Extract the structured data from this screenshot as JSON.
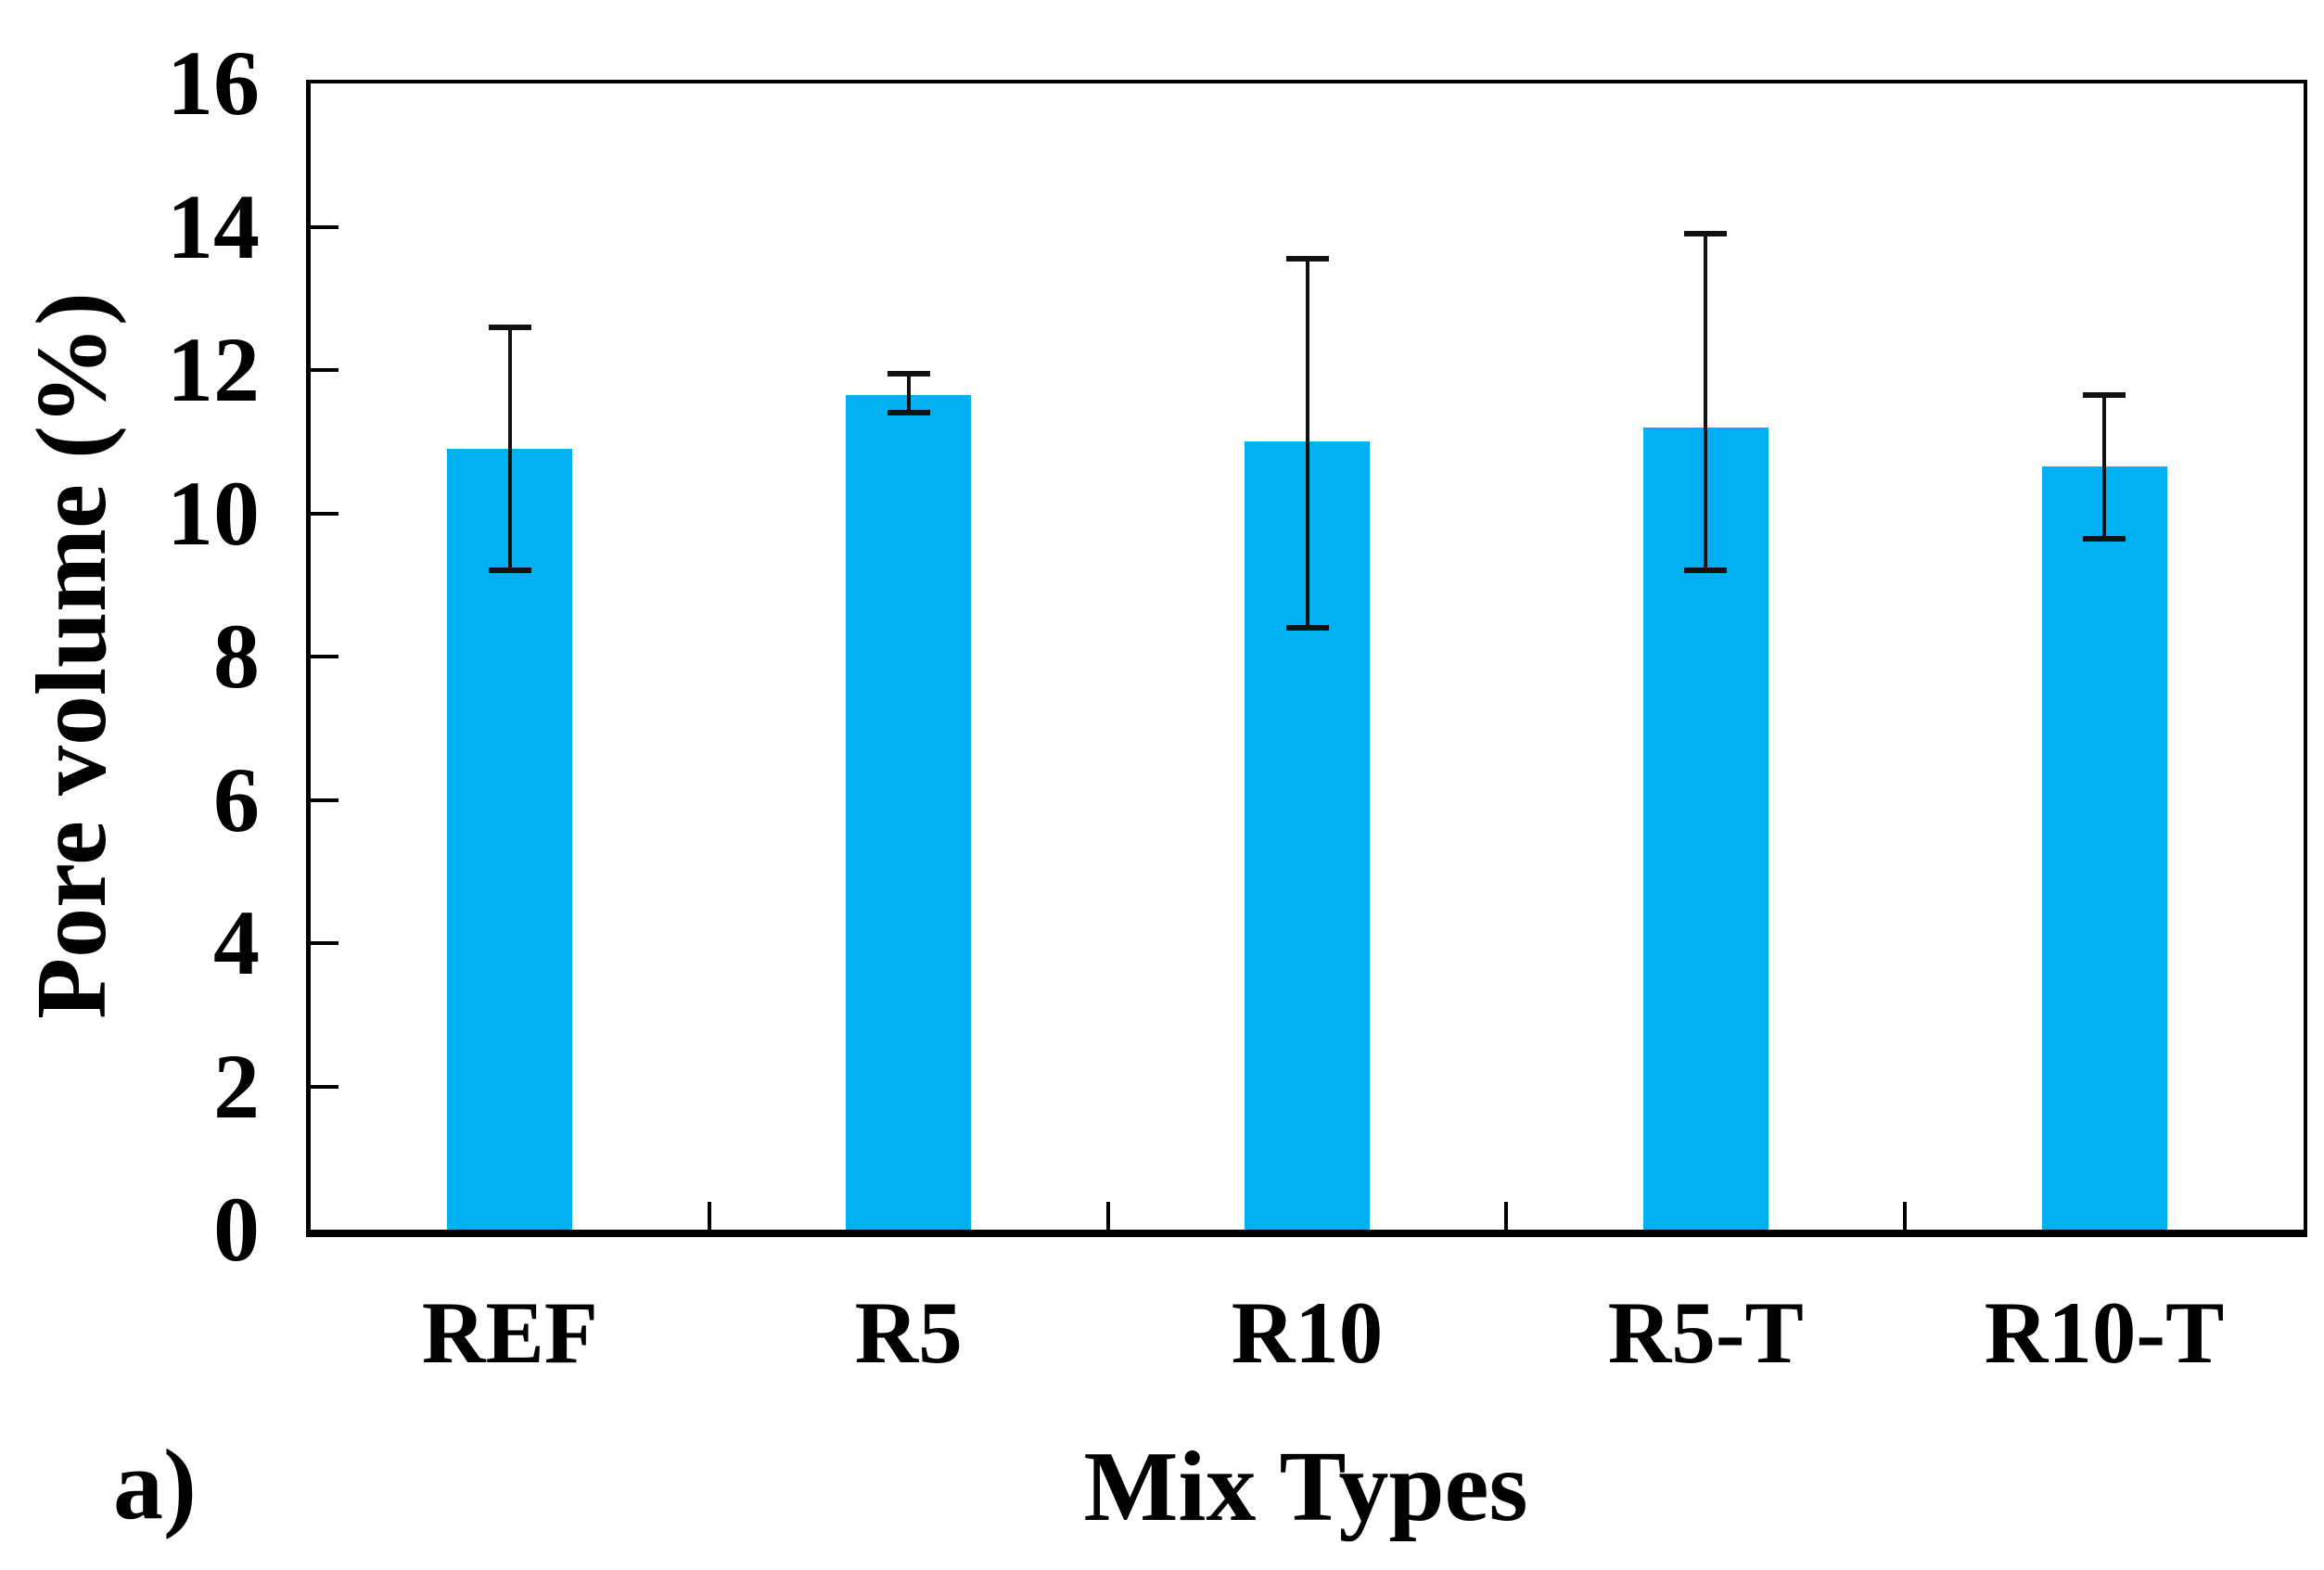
{
  "figure": {
    "panel_label": "a)",
    "background_color": "#ffffff",
    "text_color": "#000000"
  },
  "chart_data": {
    "type": "bar",
    "title": "",
    "xlabel": "Mix Types",
    "ylabel": "Pore volume (%)",
    "categories": [
      "REF",
      "R5",
      "R10",
      "R5-T",
      "R10-T"
    ],
    "values": [
      10.9,
      11.65,
      11.0,
      11.2,
      10.65
    ],
    "error_bars": {
      "upper": [
        12.6,
        11.95,
        13.55,
        13.9,
        11.65
      ],
      "lower": [
        9.2,
        11.4,
        8.4,
        9.2,
        9.65
      ]
    },
    "ylim": [
      0,
      16
    ],
    "ytick_interval": 2,
    "ytick_values": [
      0,
      2,
      4,
      6,
      8,
      10,
      12,
      14,
      16
    ],
    "ytick_labels": [
      "0",
      "2",
      "4",
      "6",
      "8",
      "10",
      "12",
      "14",
      "16"
    ],
    "bar_color": "#00B0F0",
    "axis_color": "#000000",
    "error_bar_color": "#111111",
    "bar_width_fraction": 0.314,
    "grid": false,
    "legend_position": "none",
    "frame": "full-box",
    "x_boundary_ticks": true
  }
}
